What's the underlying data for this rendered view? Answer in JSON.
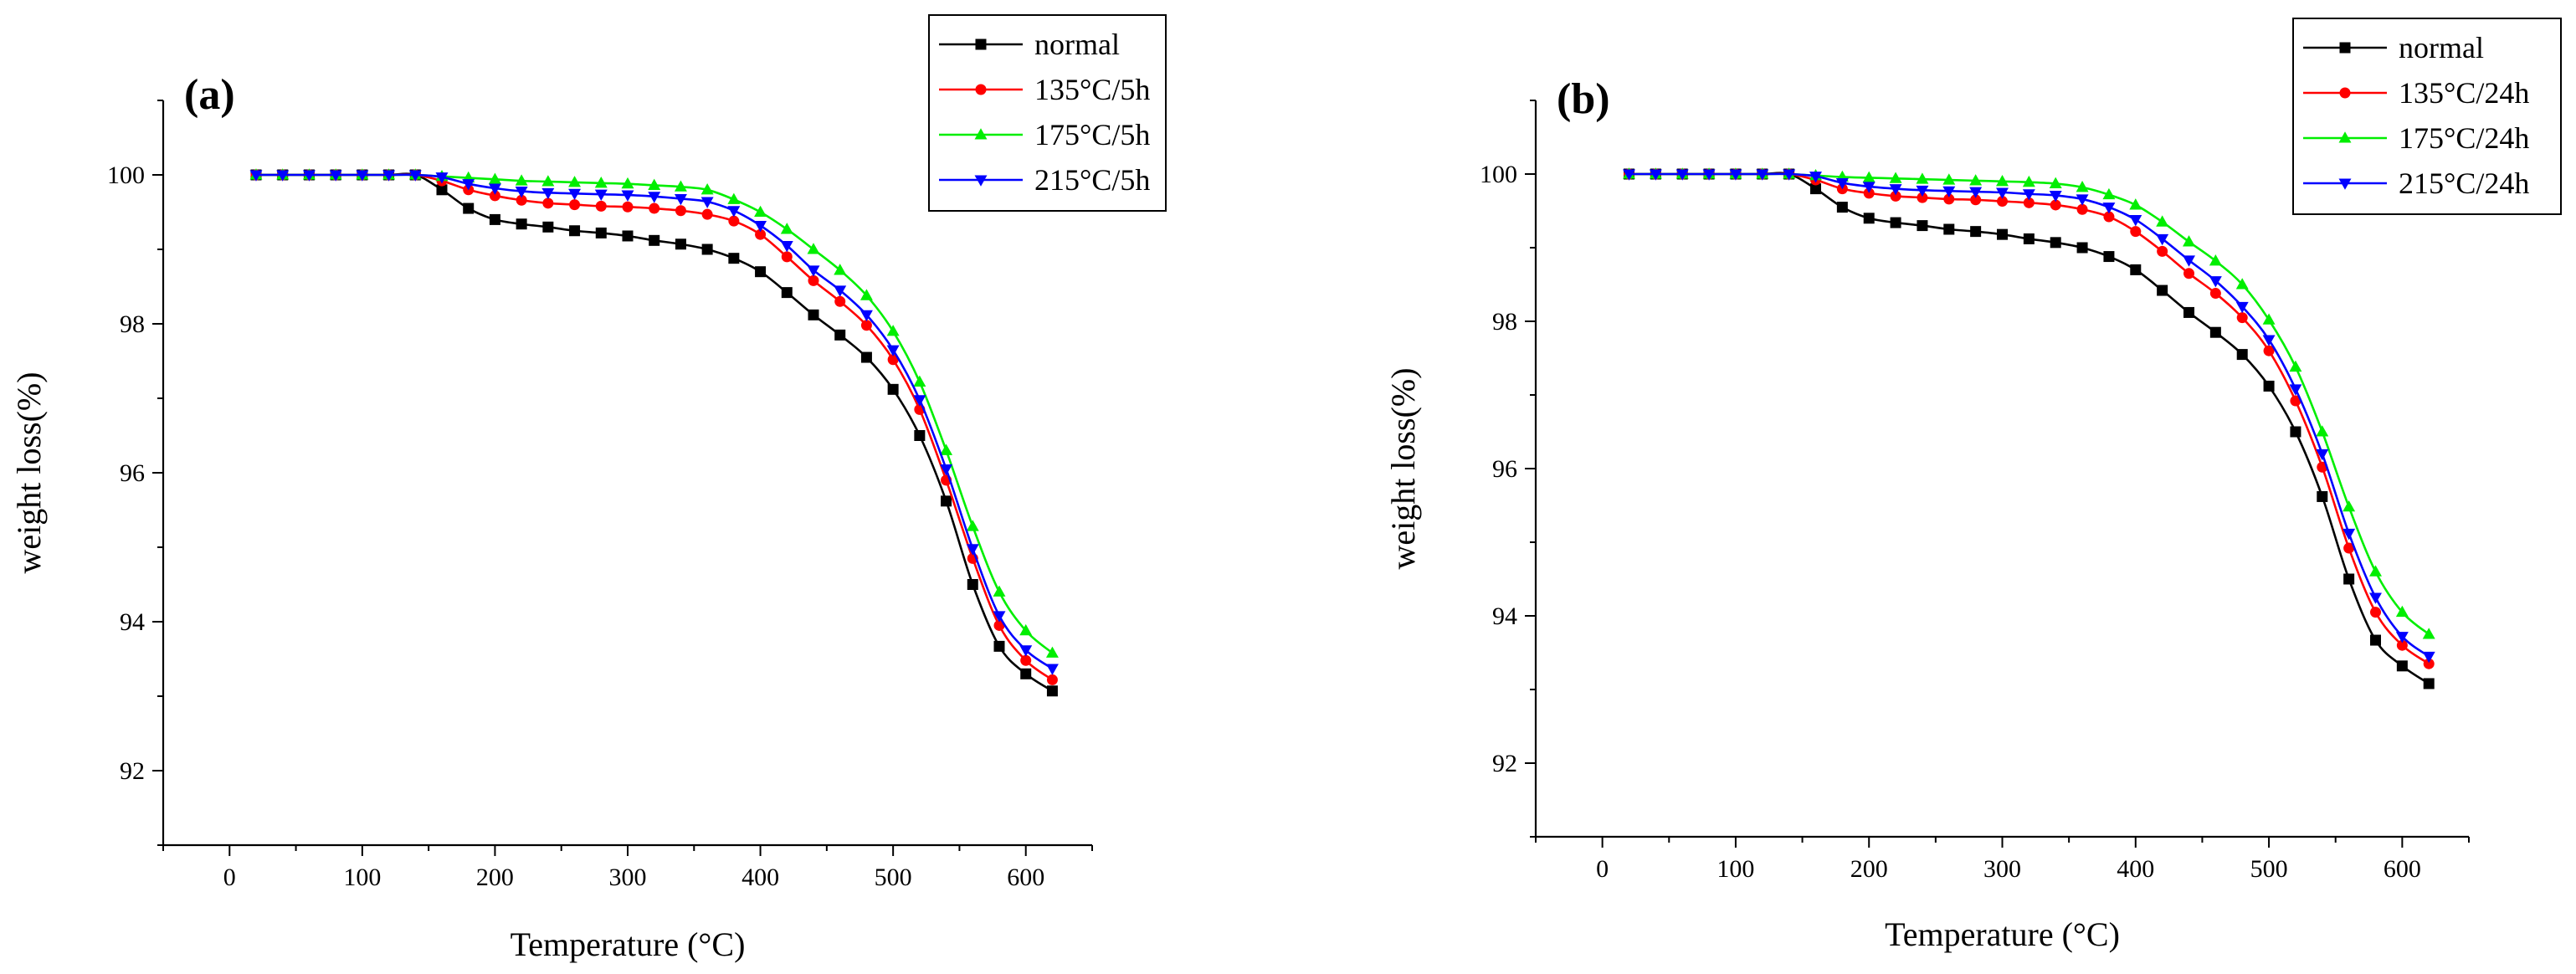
{
  "chart_data": [
    {
      "type": "line",
      "panel_label": "(a)",
      "xlabel": "Temperature (°C)",
      "ylabel": "weight loss(%)",
      "xlim": [
        -50,
        650
      ],
      "ylim": [
        91,
        101
      ],
      "xticks": [
        0,
        100,
        200,
        300,
        400,
        500,
        600
      ],
      "yticks": [
        92,
        94,
        96,
        98,
        100
      ],
      "grid": false,
      "legend_position": "top-right",
      "x": [
        20,
        40,
        60,
        80,
        100,
        120,
        140,
        160,
        180,
        200,
        220,
        240,
        260,
        280,
        300,
        320,
        340,
        360,
        380,
        400,
        420,
        440,
        460,
        480,
        500,
        520,
        540,
        560,
        580,
        600,
        620
      ],
      "series": [
        {
          "name": "normal",
          "color": "#000000",
          "marker": "square",
          "values": [
            100,
            100,
            100,
            100,
            100,
            100,
            100,
            99.8,
            99.55,
            99.4,
            99.34,
            99.3,
            99.25,
            99.22,
            99.18,
            99.12,
            99.07,
            99.0,
            98.88,
            98.7,
            98.42,
            98.12,
            97.85,
            97.55,
            97.12,
            96.5,
            95.62,
            94.5,
            93.67,
            93.3,
            93.07
          ]
        },
        {
          "name": "135°C/5h",
          "color": "#ff0000",
          "marker": "circle",
          "values": [
            100,
            100,
            100,
            100,
            100,
            100,
            100,
            99.92,
            99.8,
            99.72,
            99.66,
            99.62,
            99.6,
            99.58,
            99.57,
            99.55,
            99.52,
            99.47,
            99.38,
            99.2,
            98.9,
            98.58,
            98.3,
            97.98,
            97.52,
            96.85,
            95.9,
            94.85,
            93.95,
            93.48,
            93.22
          ]
        },
        {
          "name": "175°C/5h",
          "color": "#00ee00",
          "marker": "triangle-up",
          "values": [
            100,
            100,
            100,
            100,
            100,
            100,
            100,
            99.98,
            99.96,
            99.94,
            99.92,
            99.91,
            99.9,
            99.89,
            99.88,
            99.86,
            99.84,
            99.8,
            99.67,
            99.5,
            99.27,
            99.0,
            98.72,
            98.38,
            97.9,
            97.22,
            96.3,
            95.28,
            94.4,
            93.88,
            93.58
          ]
        },
        {
          "name": "215°C/5h",
          "color": "#0000ff",
          "marker": "triangle-down",
          "values": [
            100,
            100,
            100,
            100,
            100,
            100,
            100,
            99.97,
            99.88,
            99.82,
            99.78,
            99.76,
            99.75,
            99.74,
            99.73,
            99.71,
            99.68,
            99.64,
            99.52,
            99.32,
            99.05,
            98.72,
            98.45,
            98.12,
            97.65,
            96.98,
            96.05,
            94.98,
            94.08,
            93.62,
            93.37
          ]
        }
      ]
    },
    {
      "type": "line",
      "panel_label": "(b)",
      "xlabel": "Temperature (°C)",
      "ylabel": "weight loss(%)",
      "xlim": [
        -50,
        650
      ],
      "ylim": [
        91,
        101
      ],
      "xticks": [
        0,
        100,
        200,
        300,
        400,
        500,
        600
      ],
      "yticks": [
        92,
        94,
        96,
        98,
        100
      ],
      "grid": false,
      "legend_position": "top-right",
      "x": [
        20,
        40,
        60,
        80,
        100,
        120,
        140,
        160,
        180,
        200,
        220,
        240,
        260,
        280,
        300,
        320,
        340,
        360,
        380,
        400,
        420,
        440,
        460,
        480,
        500,
        520,
        540,
        560,
        580,
        600,
        620
      ],
      "series": [
        {
          "name": "normal",
          "color": "#000000",
          "marker": "square",
          "values": [
            100,
            100,
            100,
            100,
            100,
            100,
            100,
            99.8,
            99.55,
            99.4,
            99.34,
            99.3,
            99.25,
            99.22,
            99.18,
            99.12,
            99.07,
            99.0,
            98.88,
            98.7,
            98.42,
            98.12,
            97.85,
            97.55,
            97.12,
            96.5,
            95.62,
            94.5,
            93.67,
            93.32,
            93.08
          ]
        },
        {
          "name": "135°C/24h",
          "color": "#ff0000",
          "marker": "circle",
          "values": [
            100,
            100,
            100,
            100,
            100,
            100,
            100,
            99.92,
            99.8,
            99.74,
            99.7,
            99.68,
            99.66,
            99.65,
            99.63,
            99.61,
            99.58,
            99.52,
            99.42,
            99.22,
            98.95,
            98.65,
            98.38,
            98.05,
            97.6,
            96.92,
            96.02,
            94.92,
            94.05,
            93.6,
            93.35
          ]
        },
        {
          "name": "175°C/24h",
          "color": "#00ee00",
          "marker": "triangle-up",
          "values": [
            100,
            100,
            100,
            100,
            100,
            100,
            100,
            99.98,
            99.96,
            99.95,
            99.94,
            99.93,
            99.92,
            99.91,
            99.9,
            99.89,
            99.87,
            99.82,
            99.72,
            99.58,
            99.35,
            99.08,
            98.82,
            98.5,
            98.02,
            97.38,
            96.5,
            95.48,
            94.6,
            94.05,
            93.75
          ]
        },
        {
          "name": "215°C/24h",
          "color": "#0000ff",
          "marker": "triangle-down",
          "values": [
            100,
            100,
            100,
            100,
            100,
            100,
            100,
            99.97,
            99.88,
            99.83,
            99.8,
            99.78,
            99.77,
            99.76,
            99.75,
            99.73,
            99.71,
            99.66,
            99.55,
            99.38,
            99.12,
            98.83,
            98.55,
            98.2,
            97.75,
            97.08,
            96.2,
            95.12,
            94.25,
            93.72,
            93.45
          ]
        }
      ]
    }
  ]
}
